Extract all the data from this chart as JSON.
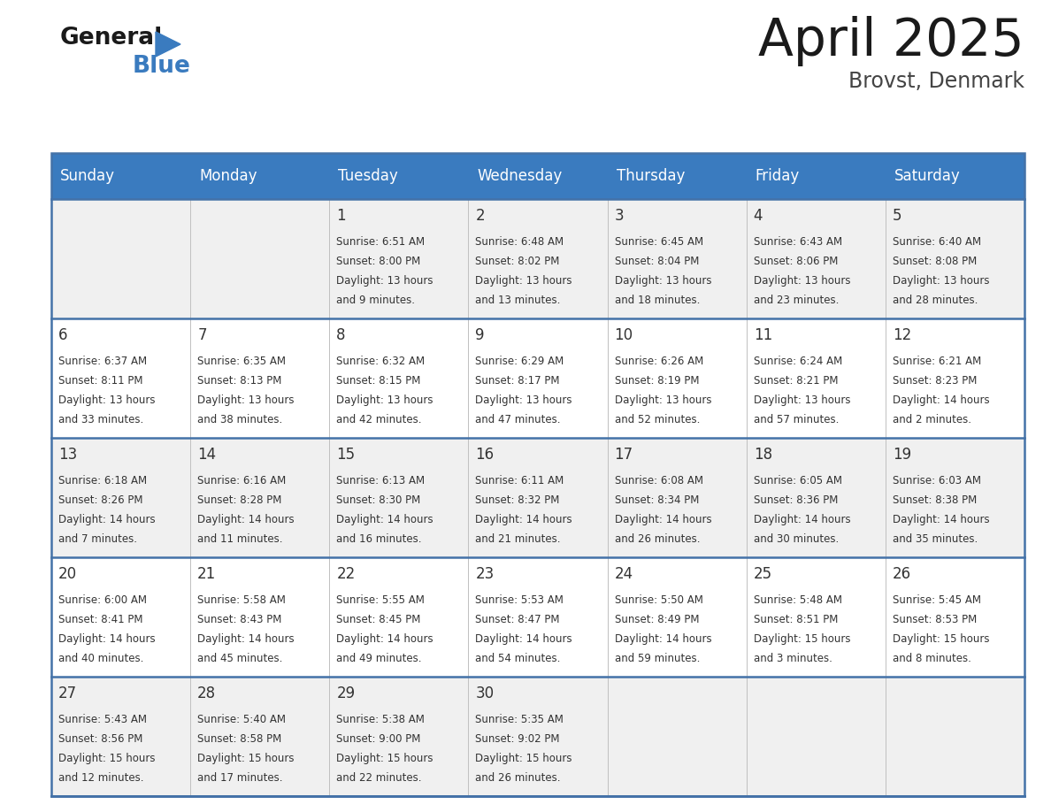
{
  "title": "April 2025",
  "subtitle": "Brovst, Denmark",
  "header_color": "#3a7bbf",
  "header_text_color": "#ffffff",
  "day_names": [
    "Sunday",
    "Monday",
    "Tuesday",
    "Wednesday",
    "Thursday",
    "Friday",
    "Saturday"
  ],
  "bg_color": "#ffffff",
  "cell_bg_even": "#f0f0f0",
  "cell_bg_odd": "#ffffff",
  "row_line_color": "#4472a8",
  "grid_line_color": "#c0c0c0",
  "text_color": "#333333",
  "num_color": "#333333",
  "weeks": [
    [
      {
        "day": null,
        "sunrise": null,
        "sunset": null,
        "daylight": null
      },
      {
        "day": null,
        "sunrise": null,
        "sunset": null,
        "daylight": null
      },
      {
        "day": 1,
        "sunrise": "6:51 AM",
        "sunset": "8:00 PM",
        "daylight": "13 hours\nand 9 minutes."
      },
      {
        "day": 2,
        "sunrise": "6:48 AM",
        "sunset": "8:02 PM",
        "daylight": "13 hours\nand 13 minutes."
      },
      {
        "day": 3,
        "sunrise": "6:45 AM",
        "sunset": "8:04 PM",
        "daylight": "13 hours\nand 18 minutes."
      },
      {
        "day": 4,
        "sunrise": "6:43 AM",
        "sunset": "8:06 PM",
        "daylight": "13 hours\nand 23 minutes."
      },
      {
        "day": 5,
        "sunrise": "6:40 AM",
        "sunset": "8:08 PM",
        "daylight": "13 hours\nand 28 minutes."
      }
    ],
    [
      {
        "day": 6,
        "sunrise": "6:37 AM",
        "sunset": "8:11 PM",
        "daylight": "13 hours\nand 33 minutes."
      },
      {
        "day": 7,
        "sunrise": "6:35 AM",
        "sunset": "8:13 PM",
        "daylight": "13 hours\nand 38 minutes."
      },
      {
        "day": 8,
        "sunrise": "6:32 AM",
        "sunset": "8:15 PM",
        "daylight": "13 hours\nand 42 minutes."
      },
      {
        "day": 9,
        "sunrise": "6:29 AM",
        "sunset": "8:17 PM",
        "daylight": "13 hours\nand 47 minutes."
      },
      {
        "day": 10,
        "sunrise": "6:26 AM",
        "sunset": "8:19 PM",
        "daylight": "13 hours\nand 52 minutes."
      },
      {
        "day": 11,
        "sunrise": "6:24 AM",
        "sunset": "8:21 PM",
        "daylight": "13 hours\nand 57 minutes."
      },
      {
        "day": 12,
        "sunrise": "6:21 AM",
        "sunset": "8:23 PM",
        "daylight": "14 hours\nand 2 minutes."
      }
    ],
    [
      {
        "day": 13,
        "sunrise": "6:18 AM",
        "sunset": "8:26 PM",
        "daylight": "14 hours\nand 7 minutes."
      },
      {
        "day": 14,
        "sunrise": "6:16 AM",
        "sunset": "8:28 PM",
        "daylight": "14 hours\nand 11 minutes."
      },
      {
        "day": 15,
        "sunrise": "6:13 AM",
        "sunset": "8:30 PM",
        "daylight": "14 hours\nand 16 minutes."
      },
      {
        "day": 16,
        "sunrise": "6:11 AM",
        "sunset": "8:32 PM",
        "daylight": "14 hours\nand 21 minutes."
      },
      {
        "day": 17,
        "sunrise": "6:08 AM",
        "sunset": "8:34 PM",
        "daylight": "14 hours\nand 26 minutes."
      },
      {
        "day": 18,
        "sunrise": "6:05 AM",
        "sunset": "8:36 PM",
        "daylight": "14 hours\nand 30 minutes."
      },
      {
        "day": 19,
        "sunrise": "6:03 AM",
        "sunset": "8:38 PM",
        "daylight": "14 hours\nand 35 minutes."
      }
    ],
    [
      {
        "day": 20,
        "sunrise": "6:00 AM",
        "sunset": "8:41 PM",
        "daylight": "14 hours\nand 40 minutes."
      },
      {
        "day": 21,
        "sunrise": "5:58 AM",
        "sunset": "8:43 PM",
        "daylight": "14 hours\nand 45 minutes."
      },
      {
        "day": 22,
        "sunrise": "5:55 AM",
        "sunset": "8:45 PM",
        "daylight": "14 hours\nand 49 minutes."
      },
      {
        "day": 23,
        "sunrise": "5:53 AM",
        "sunset": "8:47 PM",
        "daylight": "14 hours\nand 54 minutes."
      },
      {
        "day": 24,
        "sunrise": "5:50 AM",
        "sunset": "8:49 PM",
        "daylight": "14 hours\nand 59 minutes."
      },
      {
        "day": 25,
        "sunrise": "5:48 AM",
        "sunset": "8:51 PM",
        "daylight": "15 hours\nand 3 minutes."
      },
      {
        "day": 26,
        "sunrise": "5:45 AM",
        "sunset": "8:53 PM",
        "daylight": "15 hours\nand 8 minutes."
      }
    ],
    [
      {
        "day": 27,
        "sunrise": "5:43 AM",
        "sunset": "8:56 PM",
        "daylight": "15 hours\nand 12 minutes."
      },
      {
        "day": 28,
        "sunrise": "5:40 AM",
        "sunset": "8:58 PM",
        "daylight": "15 hours\nand 17 minutes."
      },
      {
        "day": 29,
        "sunrise": "5:38 AM",
        "sunset": "9:00 PM",
        "daylight": "15 hours\nand 22 minutes."
      },
      {
        "day": 30,
        "sunrise": "5:35 AM",
        "sunset": "9:02 PM",
        "daylight": "15 hours\nand 26 minutes."
      },
      {
        "day": null,
        "sunrise": null,
        "sunset": null,
        "daylight": null
      },
      {
        "day": null,
        "sunrise": null,
        "sunset": null,
        "daylight": null
      },
      {
        "day": null,
        "sunrise": null,
        "sunset": null,
        "daylight": null
      }
    ]
  ]
}
